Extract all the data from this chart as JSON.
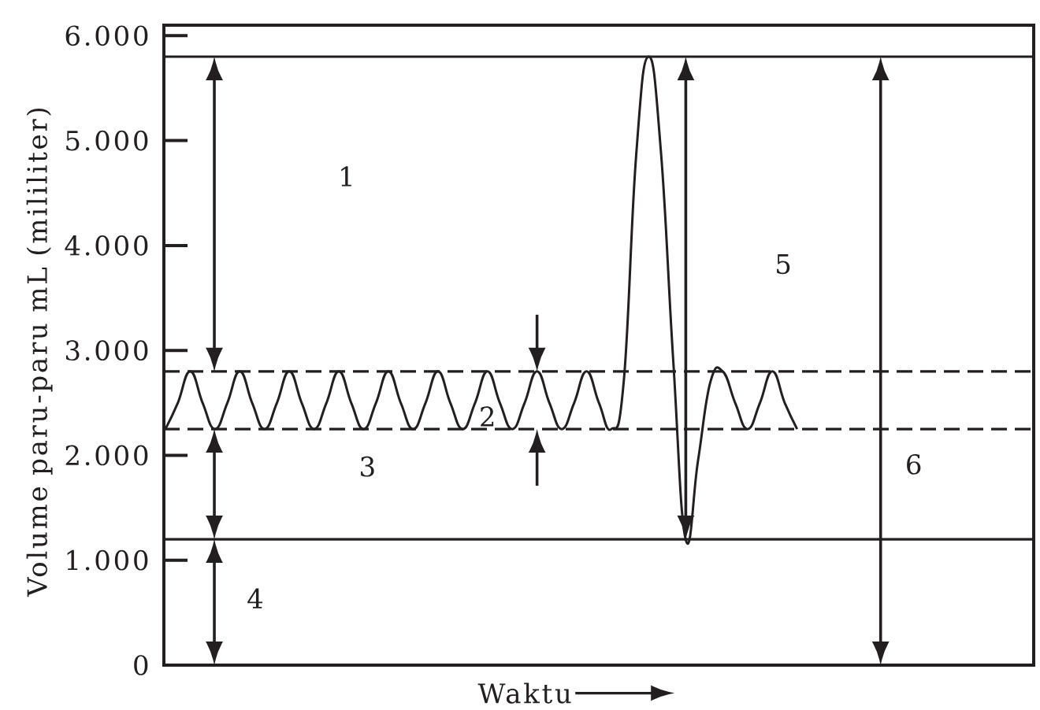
{
  "chart_data": {
    "type": "line",
    "xlabel": "Waktu",
    "ylabel": "Volume paru-paru mL (mililiter)",
    "categories": [
      null,
      null,
      null,
      null,
      null,
      null,
      null,
      null,
      null,
      null,
      null,
      null,
      null,
      null,
      null,
      null,
      null,
      null,
      null,
      null,
      null,
      null,
      null,
      null,
      null,
      null,
      null,
      null,
      null,
      null,
      null,
      null,
      null,
      null,
      null,
      null,
      null,
      null,
      null,
      null,
      null,
      null,
      null,
      null,
      null,
      null,
      null,
      null,
      null,
      null,
      null,
      null
    ],
    "series": [
      {
        "color": "#231f20",
        "values": [
          2250,
          2500,
          2800,
          2500,
          2250,
          2500,
          2800,
          2500,
          2250,
          2500,
          2800,
          2500,
          2250,
          2500,
          2800,
          2500,
          2250,
          2500,
          2800,
          2500,
          2250,
          2500,
          2800,
          2500,
          2250,
          2500,
          2800,
          2500,
          2250,
          2500,
          2800,
          2500,
          2250,
          2500,
          2800,
          2500,
          2250,
          2700,
          4850,
          5800,
          4900,
          2900,
          1200,
          1950,
          2700,
          2800,
          2500,
          2250,
          2500,
          2800,
          2500,
          2250
        ]
      }
    ],
    "ylim": [
      0,
      6100
    ],
    "yticks": [
      0,
      {
        "value": 1000,
        "label": "1.000"
      },
      {
        "value": 2000,
        "label": "2.000"
      },
      {
        "value": 3000,
        "label": "3.000"
      },
      {
        "value": 4000,
        "label": "4.000"
      },
      {
        "value": 5000,
        "label": "5.000"
      },
      {
        "value": 6000,
        "label": "6.000"
      }
    ],
    "ref_lines": [
      {
        "axis": "y",
        "value": 5800,
        "line_style": "solid"
      },
      {
        "axis": "y",
        "value": 2800,
        "line_style": "dashed"
      },
      {
        "axis": "y",
        "value": 2250,
        "line_style": "dashed"
      },
      {
        "axis": "y",
        "value": 1200,
        "line_style": "solid"
      }
    ],
    "annotations": [
      "1",
      "2",
      "3",
      "4",
      "5",
      "6"
    ]
  }
}
